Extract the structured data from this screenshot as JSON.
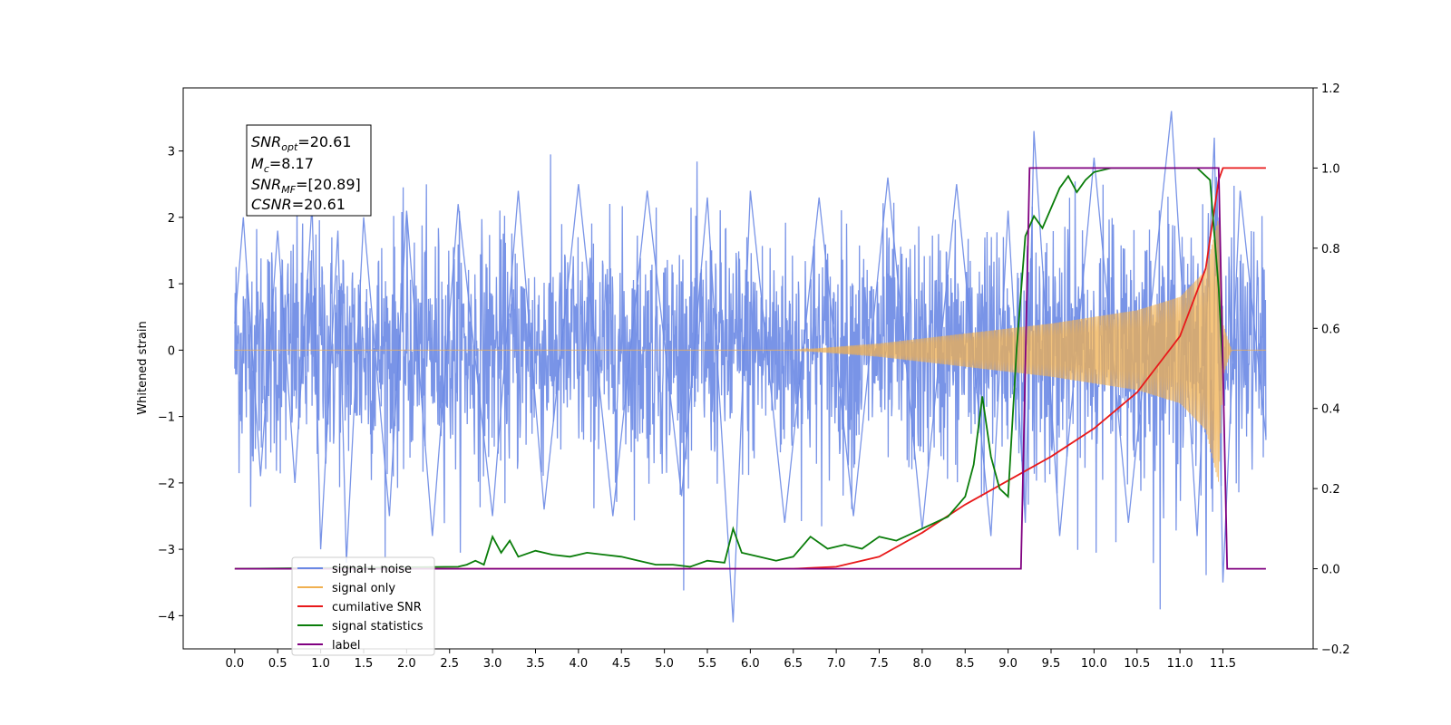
{
  "chart_data": {
    "type": "line",
    "ylabel": "Whitened strain",
    "x_ticks": [
      "0.0",
      "0.5",
      "1.0",
      "1.5",
      "2.0",
      "2.5",
      "3.0",
      "3.5",
      "4.0",
      "4.5",
      "5.0",
      "5.5",
      "6.0",
      "6.5",
      "7.0",
      "7.5",
      "8.0",
      "8.5",
      "9.0",
      "9.5",
      "10.0",
      "10.5",
      "11.0",
      "11.5"
    ],
    "x_tick_values": [
      0,
      0.5,
      1,
      1.5,
      2,
      2.5,
      3,
      3.5,
      4,
      4.5,
      5,
      5.5,
      6,
      6.5,
      7,
      7.5,
      8,
      8.5,
      9,
      9.5,
      10,
      10.5,
      11,
      11.5
    ],
    "xlim": [
      -0.6,
      12.55
    ],
    "ylim_left": [
      -4.5,
      3.95
    ],
    "yticks_left": [
      "−4",
      "−3",
      "−2",
      "−1",
      "0",
      "1",
      "2",
      "3"
    ],
    "ytick_values_left": [
      -4,
      -3,
      -2,
      -1,
      0,
      1,
      2,
      3
    ],
    "ylim_right": [
      -0.2,
      1.2
    ],
    "yticks_right": [
      "−0.2",
      "0.0",
      "0.2",
      "0.4",
      "0.6",
      "0.8",
      "1.0",
      "1.2"
    ],
    "ytick_values_right": [
      -0.2,
      0,
      0.2,
      0.4,
      0.6,
      0.8,
      1.0,
      1.2
    ],
    "annotation": {
      "snr_opt": "20.61",
      "mc": "8.17",
      "snr_mf": "[20.89]",
      "csnr": "20.61"
    },
    "legend_position": "lower-left",
    "series": [
      {
        "name": "signal+ noise",
        "color": "#6a88e4",
        "description_range": [
          0,
          12.0
        ],
        "points": [
          [
            0,
            0.4
          ],
          [
            0.1,
            2.0
          ],
          [
            0.3,
            -1.9
          ],
          [
            0.5,
            1.8
          ],
          [
            0.7,
            -2.0
          ],
          [
            0.9,
            2.2
          ],
          [
            1.0,
            -3.0
          ],
          [
            1.2,
            1.8
          ],
          [
            1.3,
            -3.2
          ],
          [
            1.5,
            2.0
          ],
          [
            1.8,
            -2.5
          ],
          [
            2.0,
            2.1
          ],
          [
            2.3,
            -2.8
          ],
          [
            2.6,
            2.2
          ],
          [
            3.0,
            -2.5
          ],
          [
            3.3,
            2.4
          ],
          [
            3.6,
            -2.4
          ],
          [
            4.0,
            2.5
          ],
          [
            4.4,
            -2.5
          ],
          [
            4.8,
            2.4
          ],
          [
            5.2,
            -2.2
          ],
          [
            5.5,
            2.3
          ],
          [
            5.8,
            -4.1
          ],
          [
            6.0,
            2.4
          ],
          [
            6.4,
            -2.6
          ],
          [
            6.8,
            2.3
          ],
          [
            7.2,
            -2.5
          ],
          [
            7.6,
            2.6
          ],
          [
            8.0,
            -2.7
          ],
          [
            8.4,
            2.5
          ],
          [
            8.8,
            -2.8
          ],
          [
            9.0,
            2.1
          ],
          [
            9.2,
            -2.6
          ],
          [
            9.3,
            3.3
          ],
          [
            9.6,
            -2.8
          ],
          [
            10.0,
            2.9
          ],
          [
            10.4,
            -2.6
          ],
          [
            10.9,
            3.6
          ],
          [
            11.2,
            -2.8
          ],
          [
            11.4,
            3.2
          ],
          [
            11.5,
            -3.5
          ],
          [
            11.7,
            2.4
          ],
          [
            12.0,
            -1.3
          ]
        ]
      },
      {
        "name": "signal only",
        "color": "#f0b050",
        "points": [
          [
            0,
            0
          ],
          [
            6.5,
            0
          ],
          [
            7.5,
            0.1
          ],
          [
            8.5,
            0.25
          ],
          [
            9.5,
            0.4
          ],
          [
            10.5,
            0.6
          ],
          [
            11.0,
            0.8
          ],
          [
            11.3,
            1.2
          ],
          [
            11.45,
            2.0
          ],
          [
            11.5,
            0.4
          ],
          [
            11.6,
            0
          ],
          [
            12.0,
            0
          ]
        ]
      },
      {
        "name": "cumilative SNR",
        "color": "#e8191a",
        "x": [
          0,
          6.5,
          7.0,
          7.5,
          8.0,
          8.5,
          9.0,
          9.5,
          10.0,
          10.5,
          11.0,
          11.3,
          11.45,
          11.5,
          12.0
        ],
        "y": [
          0.0,
          0.0,
          0.005,
          0.03,
          0.09,
          0.16,
          0.22,
          0.28,
          0.35,
          0.44,
          0.58,
          0.75,
          0.97,
          1.0,
          1.0
        ]
      },
      {
        "name": "signal statistics",
        "color": "#0a7d0a",
        "x": [
          0,
          2.6,
          2.7,
          2.8,
          2.9,
          3.0,
          3.1,
          3.2,
          3.3,
          3.5,
          3.7,
          3.9,
          4.1,
          4.3,
          4.5,
          4.7,
          4.9,
          5.1,
          5.3,
          5.5,
          5.7,
          5.8,
          5.9,
          6.1,
          6.3,
          6.5,
          6.7,
          6.9,
          7.1,
          7.3,
          7.5,
          7.7,
          7.9,
          8.1,
          8.3,
          8.5,
          8.6,
          8.7,
          8.8,
          8.9,
          9.0,
          9.1,
          9.2,
          9.3,
          9.4,
          9.5,
          9.6,
          9.7,
          9.8,
          9.9,
          10.0,
          10.2,
          10.4,
          10.6,
          10.8,
          11.0,
          11.2,
          11.35,
          11.45,
          11.5
        ],
        "y": [
          0.0,
          0.005,
          0.01,
          0.02,
          0.01,
          0.08,
          0.04,
          0.07,
          0.03,
          0.045,
          0.035,
          0.03,
          0.04,
          0.035,
          0.03,
          0.02,
          0.01,
          0.01,
          0.005,
          0.02,
          0.015,
          0.1,
          0.04,
          0.03,
          0.02,
          0.03,
          0.08,
          0.05,
          0.06,
          0.05,
          0.08,
          0.07,
          0.09,
          0.11,
          0.13,
          0.18,
          0.26,
          0.43,
          0.28,
          0.2,
          0.18,
          0.55,
          0.83,
          0.88,
          0.85,
          0.9,
          0.95,
          0.98,
          0.94,
          0.97,
          0.99,
          1.0,
          1.0,
          1.0,
          1.0,
          1.0,
          1.0,
          0.97,
          0.7,
          0.5
        ]
      },
      {
        "name": "label",
        "color": "#800080",
        "x": [
          0,
          9.15,
          9.25,
          11.45,
          11.55,
          12.0
        ],
        "y": [
          0,
          0,
          1,
          1,
          0,
          0
        ]
      }
    ]
  }
}
